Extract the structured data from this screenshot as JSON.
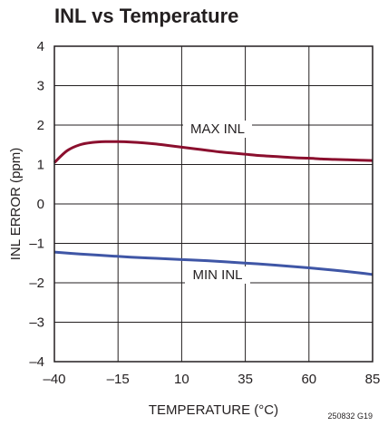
{
  "chart_data": {
    "type": "line",
    "title": "INL vs Temperature",
    "xlabel": "TEMPERATURE (°C)",
    "ylabel": "INL ERROR (ppm)",
    "xlim": [
      -40,
      85
    ],
    "ylim": [
      -4,
      4
    ],
    "x_ticks": [
      -40,
      -15,
      10,
      35,
      60,
      85
    ],
    "x_tick_labels": [
      "–40",
      "–15",
      "10",
      "35",
      "60",
      "85"
    ],
    "y_ticks": [
      4,
      3,
      2,
      1,
      0,
      -1,
      -2,
      -3,
      -4
    ],
    "y_tick_labels": [
      "4",
      "3",
      "2",
      "1",
      "0",
      "–1",
      "–2",
      "–3",
      "–4"
    ],
    "grid": true,
    "series": [
      {
        "name": "MAX INL",
        "color": "#8b0f2e",
        "x": [
          -40,
          -35,
          -30,
          -25,
          -20,
          -15,
          -10,
          -5,
          0,
          5,
          10,
          15,
          20,
          25,
          30,
          35,
          40,
          45,
          50,
          55,
          60,
          65,
          70,
          75,
          80,
          85
        ],
        "y": [
          1.05,
          1.35,
          1.5,
          1.56,
          1.58,
          1.58,
          1.57,
          1.55,
          1.52,
          1.48,
          1.44,
          1.4,
          1.36,
          1.32,
          1.29,
          1.26,
          1.23,
          1.21,
          1.19,
          1.17,
          1.16,
          1.14,
          1.13,
          1.12,
          1.11,
          1.1
        ]
      },
      {
        "name": "MIN INL",
        "color": "#3f56a6",
        "x": [
          -40,
          -30,
          -20,
          -10,
          0,
          10,
          20,
          30,
          40,
          50,
          60,
          70,
          80,
          85
        ],
        "y": [
          -1.22,
          -1.27,
          -1.31,
          -1.35,
          -1.38,
          -1.41,
          -1.44,
          -1.48,
          -1.52,
          -1.57,
          -1.62,
          -1.68,
          -1.75,
          -1.79
        ]
      }
    ],
    "annotations": [
      "250832 G19"
    ]
  }
}
